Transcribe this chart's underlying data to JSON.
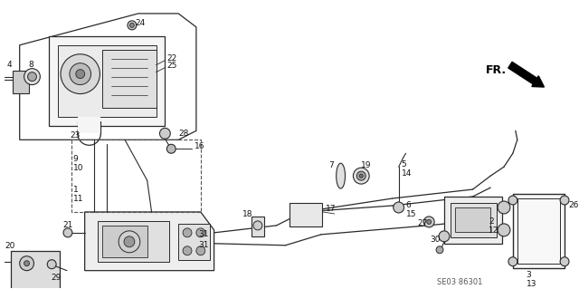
{
  "bg_color": "#ffffff",
  "line_color": "#2a2a2a",
  "diagram_code": "SE03 86301",
  "fr_text": "FR.",
  "fig_width": 6.4,
  "fig_height": 3.19,
  "dpi": 100
}
